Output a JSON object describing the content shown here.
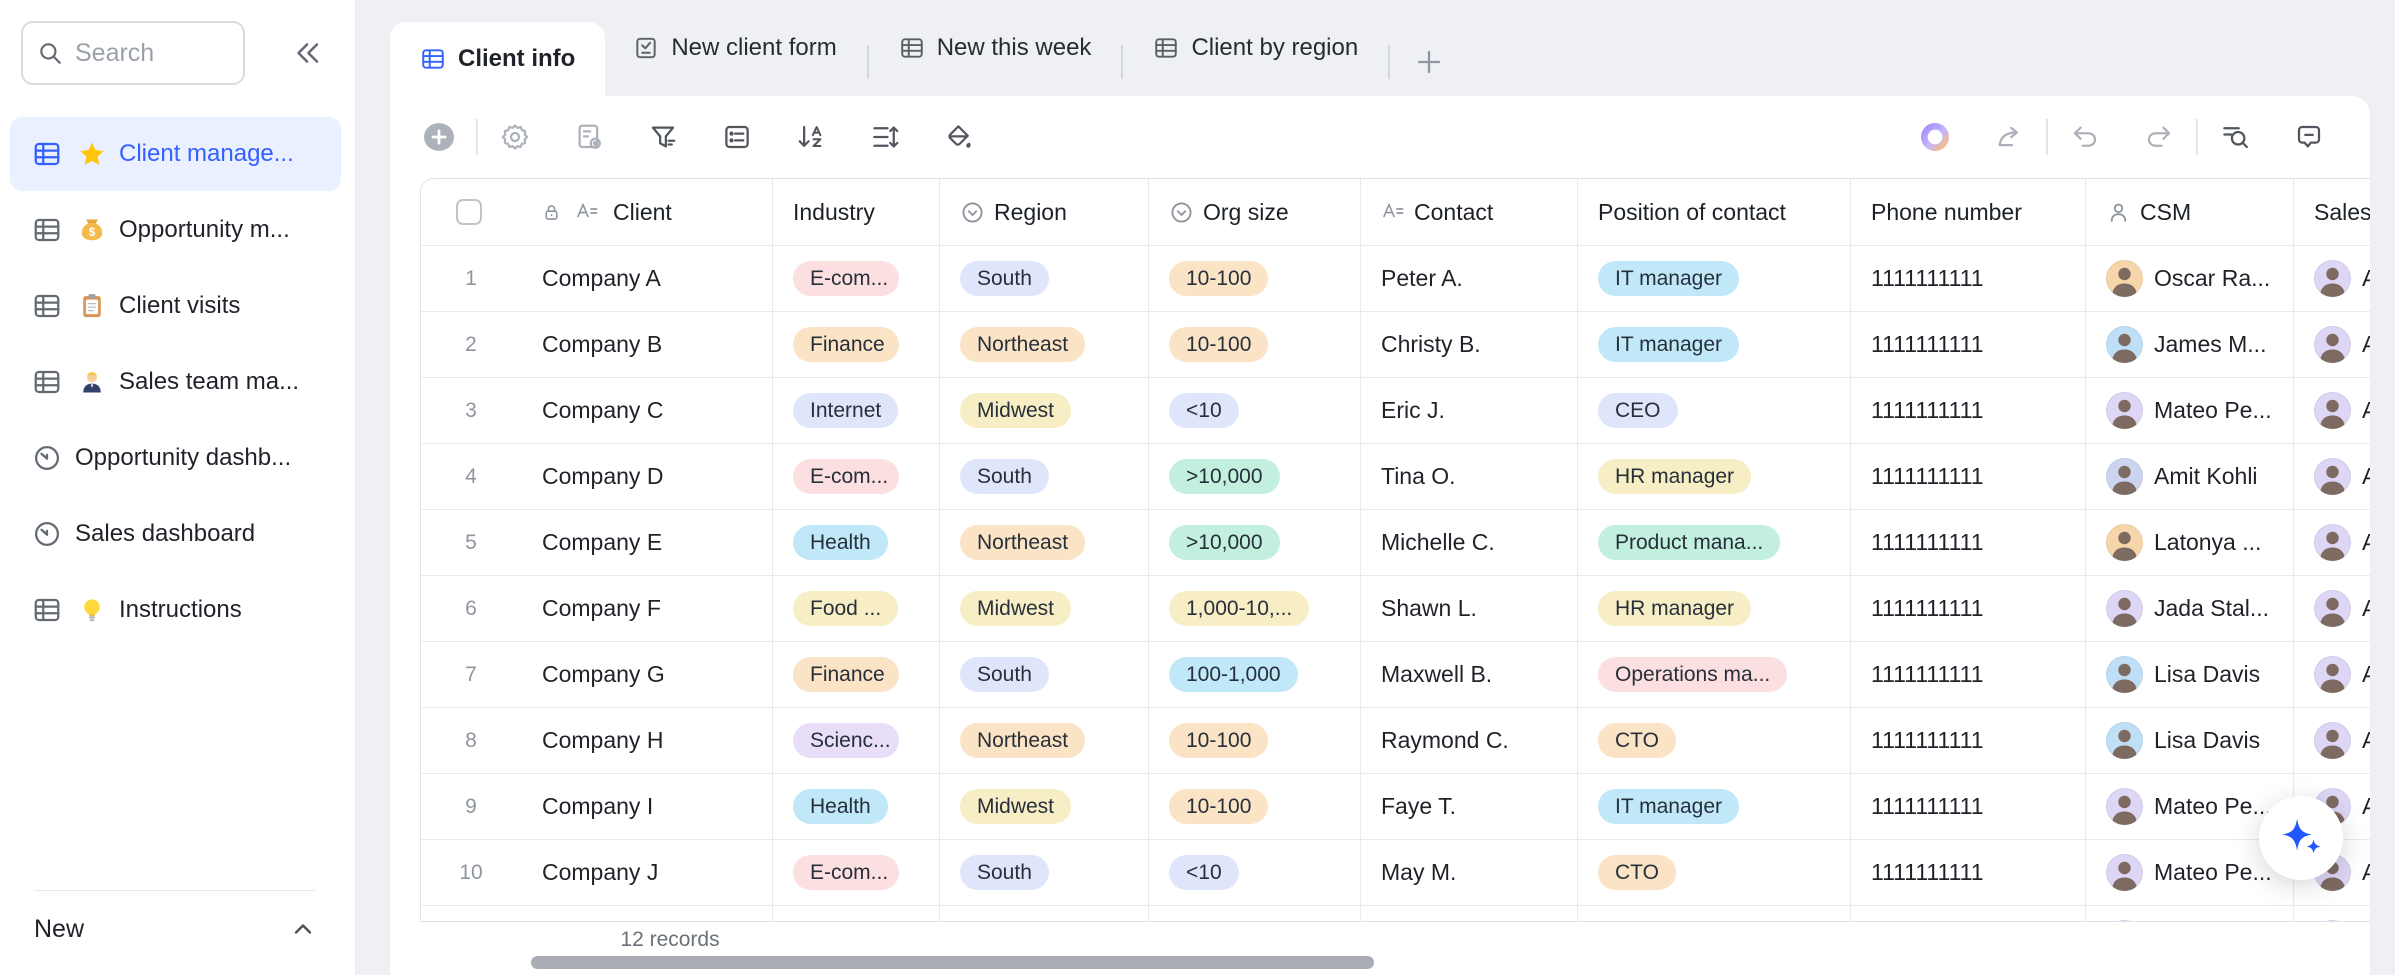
{
  "sidebar": {
    "search_placeholder": "Search",
    "new_button": "New",
    "items": [
      {
        "label": "Client manage...",
        "icon": "table",
        "emoji": "star",
        "active": true
      },
      {
        "label": "Opportunity m...",
        "icon": "table",
        "emoji": "moneybag",
        "active": false
      },
      {
        "label": "Client visits",
        "icon": "table",
        "emoji": "clipboard",
        "active": false
      },
      {
        "label": "Sales team ma...",
        "icon": "table",
        "emoji": "worker",
        "active": false
      },
      {
        "label": "Opportunity dashb...",
        "icon": "dashboard",
        "emoji": null,
        "active": false
      },
      {
        "label": "Sales dashboard",
        "icon": "dashboard",
        "emoji": null,
        "active": false
      },
      {
        "label": "Instructions",
        "icon": "table",
        "emoji": "bulb",
        "active": false
      }
    ]
  },
  "tabs": [
    {
      "label": "Client info",
      "icon": "grid",
      "active": true
    },
    {
      "label": "New client form",
      "icon": "form",
      "active": false
    },
    {
      "label": "New this week",
      "icon": "grid",
      "active": false
    },
    {
      "label": "Client by region",
      "icon": "grid",
      "active": false
    }
  ],
  "toolbar": {
    "left_groups": [
      [
        {
          "name": "add-record",
          "icon": "add",
          "dim": true
        }
      ],
      [
        {
          "name": "view-settings",
          "icon": "settings",
          "dim": true
        },
        {
          "name": "form-settings",
          "icon": "form-settings",
          "dim": true
        },
        {
          "name": "filter",
          "icon": "filter",
          "dim": false
        },
        {
          "name": "group",
          "icon": "group",
          "dim": false
        },
        {
          "name": "sort",
          "icon": "sort",
          "dim": false
        },
        {
          "name": "row-height",
          "icon": "row-height",
          "dim": false
        },
        {
          "name": "fill-color",
          "icon": "fill",
          "dim": false
        }
      ]
    ],
    "right_groups": [
      [
        {
          "name": "ai-automation",
          "icon": "ai-ring",
          "dim": false
        },
        {
          "name": "share",
          "icon": "share",
          "dim": true
        }
      ],
      [
        {
          "name": "undo",
          "icon": "undo",
          "dim": true
        },
        {
          "name": "redo",
          "icon": "redo",
          "dim": true
        }
      ],
      [
        {
          "name": "search-records",
          "icon": "find",
          "dim": false
        },
        {
          "name": "comments",
          "icon": "comment",
          "dim": false
        }
      ]
    ]
  },
  "table": {
    "columns": [
      {
        "id": "client",
        "label": "Client",
        "icons": [
          "lock",
          "text"
        ]
      },
      {
        "id": "industry",
        "label": "Industry",
        "icons": []
      },
      {
        "id": "region",
        "label": "Region",
        "icons": [
          "select"
        ]
      },
      {
        "id": "org",
        "label": "Org size",
        "icons": [
          "select"
        ]
      },
      {
        "id": "contact",
        "label": "Contact",
        "icons": [
          "text"
        ]
      },
      {
        "id": "position",
        "label": "Position of contact",
        "icons": []
      },
      {
        "id": "phone",
        "label": "Phone number",
        "icons": []
      },
      {
        "id": "csm",
        "label": "CSM",
        "icons": [
          "person"
        ]
      },
      {
        "id": "sales",
        "label": "Sales",
        "icons": []
      }
    ],
    "rows": [
      {
        "num": "1",
        "client": "Company A",
        "industry": {
          "text": "E-com...",
          "color": "pink"
        },
        "region": {
          "text": "South",
          "color": "periwinkle"
        },
        "org": {
          "text": "10-100",
          "color": "orange"
        },
        "contact": "Peter A.",
        "position": {
          "text": "IT manager",
          "color": "cyan"
        },
        "phone": "1111111111",
        "csm": {
          "name": "Oscar Ra...",
          "avatar": "peach"
        },
        "sales": {
          "name": "A",
          "avatar": "lavender"
        }
      },
      {
        "num": "2",
        "client": "Company B",
        "industry": {
          "text": "Finance",
          "color": "orange"
        },
        "region": {
          "text": "Northeast",
          "color": "orange"
        },
        "org": {
          "text": "10-100",
          "color": "orange"
        },
        "contact": "Christy B.",
        "position": {
          "text": "IT manager",
          "color": "cyan"
        },
        "phone": "1111111111",
        "csm": {
          "name": "James M...",
          "avatar": "blue"
        },
        "sales": {
          "name": "A",
          "avatar": "lavender"
        }
      },
      {
        "num": "3",
        "client": "Company C",
        "industry": {
          "text": "Internet",
          "color": "periwinkle"
        },
        "region": {
          "text": "Midwest",
          "color": "yellow"
        },
        "org": {
          "text": "<10",
          "color": "periwinkle"
        },
        "contact": "Eric J.",
        "position": {
          "text": "CEO",
          "color": "periwinkle"
        },
        "phone": "1111111111",
        "csm": {
          "name": "Mateo Pe...",
          "avatar": "lavender"
        },
        "sales": {
          "name": "A",
          "avatar": "lavender"
        }
      },
      {
        "num": "4",
        "client": "Company D",
        "industry": {
          "text": "E-com...",
          "color": "pink"
        },
        "region": {
          "text": "South",
          "color": "periwinkle"
        },
        "org": {
          "text": ">10,000",
          "color": "mint"
        },
        "contact": "Tina O.",
        "position": {
          "text": "HR manager",
          "color": "yellow"
        },
        "phone": "1111111111",
        "csm": {
          "name": "Amit Kohli",
          "avatar": "periwinkle"
        },
        "sales": {
          "name": "A",
          "avatar": "lavender"
        }
      },
      {
        "num": "5",
        "client": "Company E",
        "industry": {
          "text": "Health",
          "color": "cyan"
        },
        "region": {
          "text": "Northeast",
          "color": "orange"
        },
        "org": {
          "text": ">10,000",
          "color": "mint"
        },
        "contact": "Michelle C.",
        "position": {
          "text": "Product mana...",
          "color": "mint"
        },
        "phone": "1111111111",
        "csm": {
          "name": "Latonya ...",
          "avatar": "peach"
        },
        "sales": {
          "name": "A",
          "avatar": "lavender"
        }
      },
      {
        "num": "6",
        "client": "Company F",
        "industry": {
          "text": "Food ...",
          "color": "yellow"
        },
        "region": {
          "text": "Midwest",
          "color": "yellow"
        },
        "org": {
          "text": "1,000-10,...",
          "color": "yellow"
        },
        "contact": "Shawn L.",
        "position": {
          "text": "HR manager",
          "color": "yellow"
        },
        "phone": "1111111111",
        "csm": {
          "name": "Jada Stal...",
          "avatar": "lavender"
        },
        "sales": {
          "name": "A",
          "avatar": "lavender"
        }
      },
      {
        "num": "7",
        "client": "Company G",
        "industry": {
          "text": "Finance",
          "color": "orange"
        },
        "region": {
          "text": "South",
          "color": "periwinkle"
        },
        "org": {
          "text": "100-1,000",
          "color": "cyan"
        },
        "contact": "Maxwell B.",
        "position": {
          "text": "Operations ma...",
          "color": "pink"
        },
        "phone": "1111111111",
        "csm": {
          "name": "Lisa Davis",
          "avatar": "blue"
        },
        "sales": {
          "name": "A",
          "avatar": "lavender"
        }
      },
      {
        "num": "8",
        "client": "Company H",
        "industry": {
          "text": "Scienc...",
          "color": "purple"
        },
        "region": {
          "text": "Northeast",
          "color": "orange"
        },
        "org": {
          "text": "10-100",
          "color": "orange"
        },
        "contact": "Raymond C.",
        "position": {
          "text": "CTO",
          "color": "orange"
        },
        "phone": "1111111111",
        "csm": {
          "name": "Lisa Davis",
          "avatar": "blue"
        },
        "sales": {
          "name": "A",
          "avatar": "lavender"
        }
      },
      {
        "num": "9",
        "client": "Company I",
        "industry": {
          "text": "Health",
          "color": "cyan"
        },
        "region": {
          "text": "Midwest",
          "color": "yellow"
        },
        "org": {
          "text": "10-100",
          "color": "orange"
        },
        "contact": "Faye T.",
        "position": {
          "text": "IT manager",
          "color": "cyan"
        },
        "phone": "1111111111",
        "csm": {
          "name": "Mateo Pe...",
          "avatar": "lavender"
        },
        "sales": {
          "name": "A",
          "avatar": "lavender"
        }
      },
      {
        "num": "10",
        "client": "Company J",
        "industry": {
          "text": "E-com...",
          "color": "pink"
        },
        "region": {
          "text": "South",
          "color": "periwinkle"
        },
        "org": {
          "text": "<10",
          "color": "periwinkle"
        },
        "contact": "May M.",
        "position": {
          "text": "CTO",
          "color": "orange"
        },
        "phone": "1111111111",
        "csm": {
          "name": "Mateo Pe...",
          "avatar": "lavender"
        },
        "sales": {
          "name": "A",
          "avatar": "lavender"
        }
      },
      {
        "num": "",
        "partial": true,
        "client": "",
        "industry": {
          "text": "",
          "color": "purple"
        },
        "region": {
          "text": "",
          "color": "orange"
        },
        "org": {
          "text": "",
          "color": "orange"
        },
        "contact": "",
        "position": {
          "text": "",
          "color": "mint"
        },
        "phone": "",
        "csm": {
          "name": "",
          "avatar": "lavender"
        },
        "sales": {
          "name": "",
          "avatar": "lavender"
        }
      }
    ]
  },
  "footer": {
    "record_count": "12 records"
  },
  "colors": {
    "accent_blue": "#3360ff",
    "badge_palette": {
      "pink": "#fcdfe0",
      "orange": "#fbe3c5",
      "periwinkle": "#dfe6fc",
      "yellow": "#f7eec5",
      "mint": "#c2efde",
      "cyan": "#c0e8f9",
      "purple": "#e8defa"
    },
    "avatar_palette": {
      "peach": "#f6d5ab",
      "blue": "#bfdff6",
      "lavender": "#ddd6f4",
      "periwinkle": "#ccd4f0"
    }
  }
}
